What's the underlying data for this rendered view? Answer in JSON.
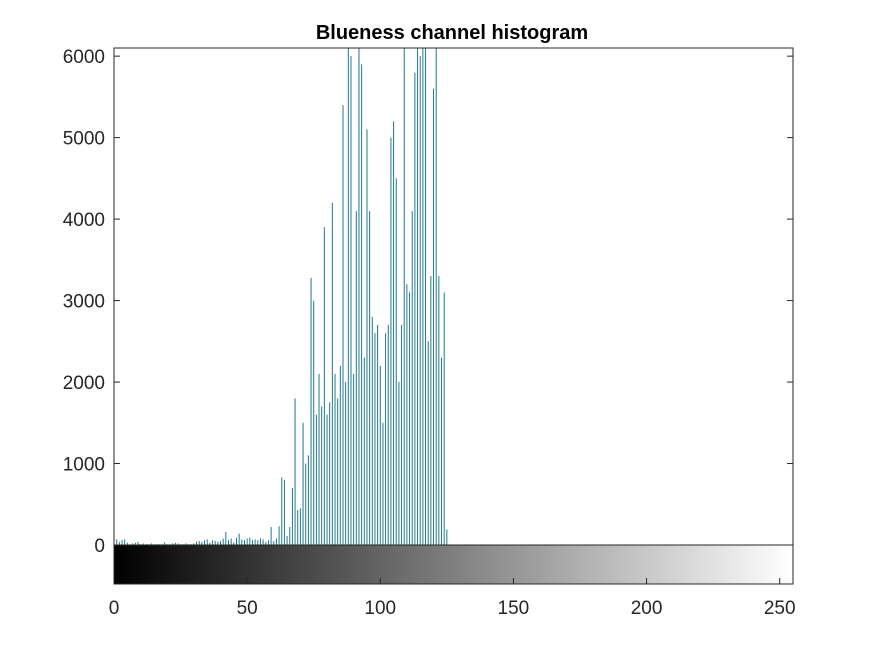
{
  "chart_data": {
    "type": "bar",
    "title": "Blueness channel histogram",
    "xlabel": "",
    "ylabel": "",
    "xlim": [
      0,
      255
    ],
    "ylim": [
      0,
      6100
    ],
    "xticks": [
      "0",
      "50",
      "100",
      "150",
      "200",
      "250"
    ],
    "xtick_values": [
      0,
      50,
      100,
      150,
      200,
      250
    ],
    "yticks": [
      "0",
      "1000",
      "2000",
      "3000",
      "4000",
      "5000",
      "6000"
    ],
    "ytick_values": [
      0,
      1000,
      2000,
      3000,
      4000,
      5000,
      6000
    ],
    "bar_color": "#1f7a8c",
    "axis_color": "#262626",
    "colorbar": {
      "range": [
        0,
        255
      ],
      "from_color": "#000000",
      "to_color": "#ffffff"
    },
    "x": [
      0,
      1,
      2,
      3,
      4,
      5,
      6,
      7,
      8,
      9,
      10,
      11,
      12,
      13,
      14,
      15,
      16,
      17,
      18,
      19,
      20,
      21,
      22,
      23,
      24,
      25,
      26,
      27,
      28,
      29,
      30,
      31,
      32,
      33,
      34,
      35,
      36,
      37,
      38,
      39,
      40,
      41,
      42,
      43,
      44,
      45,
      46,
      47,
      48,
      49,
      50,
      51,
      52,
      53,
      54,
      55,
      56,
      57,
      58,
      59,
      60,
      61,
      62,
      63,
      64,
      65,
      66,
      67,
      68,
      69,
      70,
      71,
      72,
      73,
      74,
      75,
      76,
      77,
      78,
      79,
      80,
      81,
      82,
      83,
      84,
      85,
      86,
      87,
      88,
      89,
      90,
      91,
      92,
      93,
      94,
      95,
      96,
      97,
      98,
      99,
      100,
      101,
      102,
      103,
      104,
      105,
      106,
      107,
      108,
      109,
      110,
      111,
      112,
      113,
      114,
      115,
      116,
      117,
      118,
      119,
      120,
      121,
      122,
      123,
      124,
      125
    ],
    "values": [
      90,
      70,
      40,
      60,
      70,
      30,
      10,
      20,
      30,
      40,
      10,
      20,
      10,
      10,
      20,
      10,
      10,
      10,
      10,
      30,
      10,
      10,
      20,
      30,
      20,
      10,
      10,
      20,
      10,
      10,
      20,
      40,
      50,
      40,
      60,
      70,
      30,
      60,
      50,
      40,
      50,
      80,
      160,
      60,
      80,
      30,
      90,
      140,
      70,
      60,
      80,
      90,
      60,
      70,
      60,
      80,
      70,
      40,
      60,
      220,
      50,
      80,
      230,
      830,
      800,
      110,
      220,
      700,
      1800,
      430,
      450,
      1500,
      1000,
      1100,
      3280,
      3000,
      1600,
      2100,
      1700,
      3900,
      1600,
      1750,
      4200,
      2100,
      1800,
      2200,
      5400,
      2000,
      6100,
      6000,
      2100,
      4100,
      6100,
      5900,
      2300,
      5100,
      4100,
      2800,
      2600,
      2700,
      2200,
      1500,
      2600,
      2700,
      5000,
      5200,
      4500,
      2000,
      2700,
      6100,
      3200,
      3100,
      4100,
      5800,
      6100,
      6000,
      6100,
      6100,
      2500,
      3300,
      5600,
      6100,
      3300,
      2300,
      3100,
      190
    ]
  }
}
